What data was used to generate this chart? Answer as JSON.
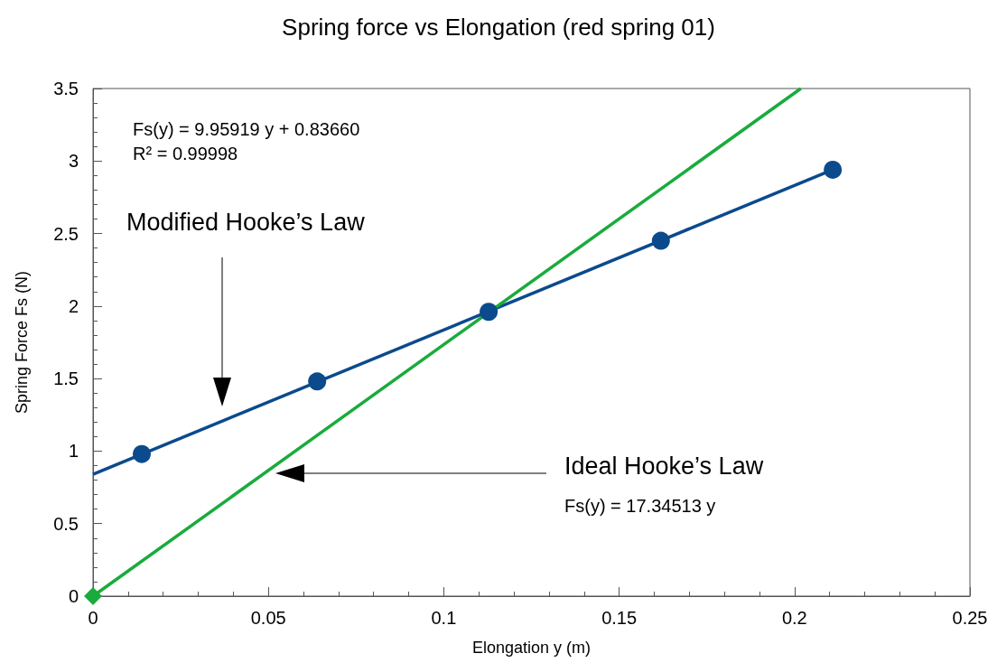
{
  "chart_data": {
    "type": "line",
    "title": "Spring force vs Elongation (red spring 01)",
    "xlabel": "Elongation y (m)",
    "ylabel": "Spring Force Fs (N)",
    "xlim": [
      0,
      0.25
    ],
    "xticks": [
      0,
      0.05,
      0.1,
      0.15,
      0.2,
      0.25
    ],
    "ylim": [
      0,
      3.5
    ],
    "yticks": [
      0,
      0.5,
      1,
      1.5,
      2,
      2.5,
      3,
      3.5
    ],
    "grid": false,
    "annotations": [
      "Fs(y) = 9.95919 y + 0.83660",
      "R² = 0.99998",
      "Modified Hooke’s Law",
      "Ideal Hooke’s Law",
      "Fs(y) = 17.34513 y"
    ],
    "series": [
      {
        "color": "#0b4a8c",
        "marker": "none",
        "x": [
          0,
          0.2109
        ],
        "values": [
          0.84,
          2.94
        ]
      },
      {
        "color": "#1aab3c",
        "marker": "none",
        "x": [
          0,
          0.2018
        ],
        "values": [
          0,
          3.5
        ]
      },
      {
        "type": "scatter",
        "color": "#0b4a8c",
        "marker": "circle",
        "x": [
          0.0139,
          0.0639,
          0.1128,
          0.1619,
          0.2109
        ],
        "values": [
          0.98,
          1.48,
          1.96,
          2.45,
          2.94
        ]
      },
      {
        "type": "scatter",
        "color": "#1aab3c",
        "marker": "diamond",
        "x": [
          0
        ],
        "values": [
          0
        ]
      }
    ]
  }
}
